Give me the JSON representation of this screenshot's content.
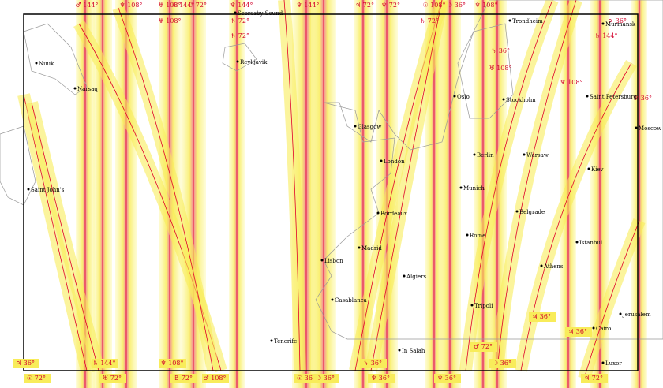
{
  "line_labels": [
    "♂ 144°",
    "♆ 108°",
    "♅ 108°",
    "☉ 144°",
    "☽ 72°",
    "♆ 144°",
    "♆ 144°",
    "♃ 72°",
    "♆ 72°",
    "☉ 108°",
    "☽ 36°",
    "♆ 108°",
    "♅ 108°",
    "♄ 72°",
    "♄ 72°",
    "♄ 72°",
    "♃ 36°",
    "♄ 144°",
    "♄ 36°",
    "♅ 108°",
    "♆ 108°",
    "♆ 36°",
    "♃ 36°",
    "☉ 72°",
    "♄ 144°",
    "♅ 72°",
    "♆ 108°",
    "♇ 72°",
    "♂ 108°",
    "☉ 36°",
    "☽ 36°",
    "♄ 36°",
    "♆ 36°",
    "♆ 36°",
    "♂ 72°",
    "☽ 36°",
    "♃ 36°",
    "♃ 36°",
    "♃ 72°"
  ],
  "cities": [
    "Nuuk",
    "Narsaq",
    "Saint John's",
    "Scoresby Sound",
    "Reykjavik",
    "Tenerife",
    "Lisbon",
    "Madrid",
    "Casablanca",
    "Bordeaux",
    "London",
    "Glasgow",
    "Algiers",
    "In Salah",
    "Oslo",
    "Stockholm",
    "Trondheim",
    "Berlin",
    "Munich",
    "Rome",
    "Tripoli",
    "Belgrade",
    "Warsaw",
    "Athens",
    "Istanbul",
    "Kiev",
    "Moscow",
    "Saint Petersburg",
    "Murmansk",
    "Jerusalem",
    "Cairo",
    "Luxor"
  ]
}
